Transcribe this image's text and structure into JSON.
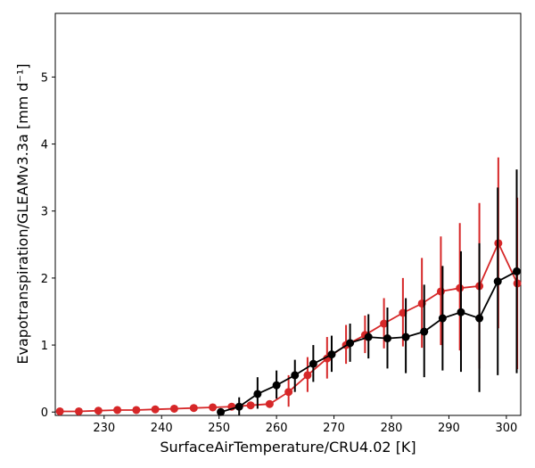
{
  "chart_data": {
    "type": "line",
    "title": "",
    "xlabel": "SurfaceAirTemperature/CRU4.02 [K]",
    "ylabel": "Evapotranspiration/GLEAMv3.3a [mm d⁻¹]",
    "xlim": [
      221.5,
      302.5
    ],
    "ylim": [
      -0.05,
      5.95
    ],
    "xticks": [
      230,
      240,
      250,
      260,
      270,
      280,
      290,
      300
    ],
    "yticks": [
      0,
      1,
      2,
      3,
      4,
      5
    ],
    "grid": false,
    "legend": "none",
    "series": [
      {
        "color": "#d62728",
        "x": [
          222.3,
          225.6,
          229.0,
          232.3,
          235.6,
          238.9,
          242.2,
          245.6,
          248.9,
          252.2,
          255.5,
          258.8,
          262.1,
          265.4,
          268.8,
          272.1,
          275.4,
          278.7,
          282.0,
          285.3,
          288.6,
          291.9,
          295.3,
          298.6,
          301.9
        ],
        "y": [
          0.01,
          0.01,
          0.02,
          0.03,
          0.03,
          0.04,
          0.05,
          0.06,
          0.07,
          0.08,
          0.1,
          0.12,
          0.3,
          0.55,
          0.8,
          1.0,
          1.15,
          1.32,
          1.48,
          1.62,
          1.8,
          1.85,
          1.88,
          2.52,
          1.92
        ],
        "err_low": [
          0.01,
          0.01,
          0.02,
          0.03,
          0.03,
          0.04,
          0.05,
          0.06,
          0.07,
          0.08,
          0.1,
          0.12,
          0.08,
          0.3,
          0.5,
          0.72,
          0.88,
          0.95,
          0.98,
          0.96,
          1.0,
          0.92,
          0.65,
          1.25,
          0.64
        ],
        "err_high": [
          0.01,
          0.01,
          0.02,
          0.03,
          0.03,
          0.04,
          0.05,
          0.06,
          0.07,
          0.08,
          0.1,
          0.12,
          0.55,
          0.82,
          1.12,
          1.3,
          1.44,
          1.7,
          2.0,
          2.3,
          2.62,
          2.82,
          3.12,
          3.8,
          3.2
        ]
      },
      {
        "color": "#000000",
        "x": [
          250.3,
          253.5,
          256.7,
          260.0,
          263.2,
          266.4,
          269.6,
          272.8,
          276.0,
          279.3,
          282.5,
          285.7,
          288.9,
          292.1,
          295.3,
          298.5,
          301.8
        ],
        "y": [
          0.0,
          0.08,
          0.27,
          0.4,
          0.55,
          0.72,
          0.86,
          1.03,
          1.12,
          1.1,
          1.12,
          1.2,
          1.4,
          1.49,
          1.4,
          1.95,
          2.1
        ],
        "err_low": [
          0.0,
          -0.05,
          0.05,
          0.2,
          0.3,
          0.45,
          0.6,
          0.75,
          0.8,
          0.65,
          0.58,
          0.52,
          0.62,
          0.6,
          0.3,
          0.55,
          0.58
        ],
        "err_high": [
          0.0,
          0.22,
          0.52,
          0.62,
          0.78,
          1.0,
          1.14,
          1.32,
          1.46,
          1.56,
          1.7,
          1.9,
          2.18,
          2.4,
          2.52,
          3.35,
          3.62
        ]
      }
    ]
  }
}
